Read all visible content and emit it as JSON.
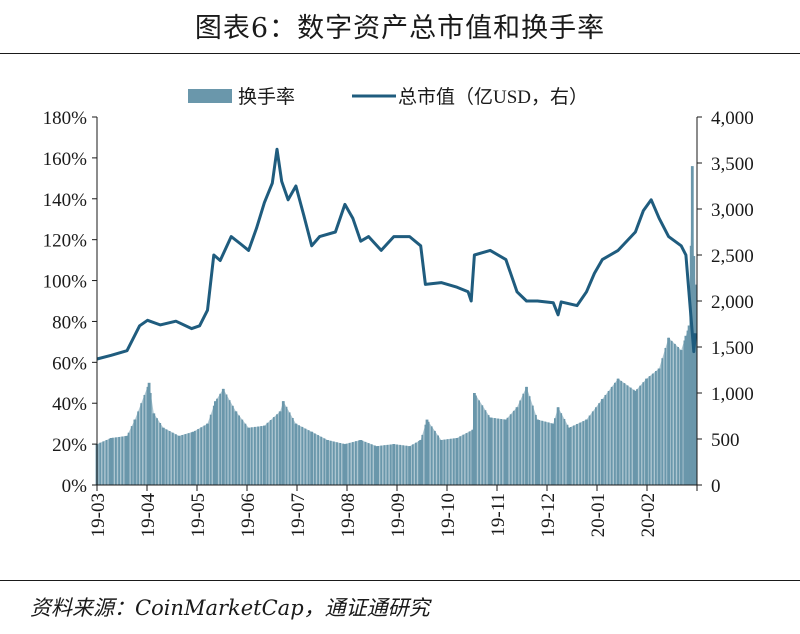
{
  "title": "图表6：数字资产总市值和换手率",
  "source": "资料来源：CoinMarketCap，通证通研究",
  "colors": {
    "bar": "#6a97ab",
    "line": "#1f5c7e",
    "text": "#1a1a1a",
    "axis": "#1a1a1a"
  },
  "chart_data": {
    "type": "bar+line",
    "legend": {
      "position": "top-center",
      "bar_label": "换手率",
      "line_label": "总市值（亿USD，右）"
    },
    "x_ticks": [
      "19-03",
      "19-04",
      "19-05",
      "19-06",
      "19-07",
      "19-08",
      "19-09",
      "19-10",
      "19-11",
      "19-12",
      "20-01",
      "20-02"
    ],
    "x_domain": [
      "2019-03-01",
      "2020-03-15"
    ],
    "y_left": {
      "min": 0,
      "max": 180,
      "ticks": [
        "0%",
        "20%",
        "40%",
        "60%",
        "80%",
        "100%",
        "120%",
        "140%",
        "160%",
        "180%"
      ]
    },
    "y_right": {
      "min": 0,
      "max": 4000,
      "ticks": [
        "0",
        "500",
        "1,000",
        "1,500",
        "2,000",
        "2,500",
        "3,000",
        "3,500",
        "4,000"
      ]
    },
    "grid": false,
    "series": [
      {
        "name": "换手率",
        "kind": "bar",
        "axis": "left",
        "unit": "%",
        "points": [
          [
            "2019-03-01",
            20
          ],
          [
            "2019-03-10",
            23
          ],
          [
            "2019-03-20",
            24
          ],
          [
            "2019-03-25",
            32
          ],
          [
            "2019-04-03",
            50
          ],
          [
            "2019-04-06",
            35
          ],
          [
            "2019-04-12",
            28
          ],
          [
            "2019-04-22",
            24
          ],
          [
            "2019-05-01",
            26
          ],
          [
            "2019-05-10",
            30
          ],
          [
            "2019-05-15",
            41
          ],
          [
            "2019-05-20",
            47
          ],
          [
            "2019-05-28",
            36
          ],
          [
            "2019-06-05",
            28
          ],
          [
            "2019-06-15",
            29
          ],
          [
            "2019-06-25",
            36
          ],
          [
            "2019-06-27",
            41
          ],
          [
            "2019-07-05",
            30
          ],
          [
            "2019-07-15",
            26
          ],
          [
            "2019-07-25",
            22
          ],
          [
            "2019-08-05",
            20
          ],
          [
            "2019-08-15",
            22
          ],
          [
            "2019-08-25",
            19
          ],
          [
            "2019-09-05",
            20
          ],
          [
            "2019-09-15",
            19
          ],
          [
            "2019-09-22",
            22
          ],
          [
            "2019-09-26",
            32
          ],
          [
            "2019-10-05",
            22
          ],
          [
            "2019-10-15",
            23
          ],
          [
            "2019-10-25",
            27
          ],
          [
            "2019-10-26",
            45
          ],
          [
            "2019-11-05",
            33
          ],
          [
            "2019-11-15",
            32
          ],
          [
            "2019-11-22",
            38
          ],
          [
            "2019-11-28",
            48
          ],
          [
            "2019-12-05",
            32
          ],
          [
            "2019-12-15",
            30
          ],
          [
            "2019-12-18",
            38
          ],
          [
            "2019-12-25",
            28
          ],
          [
            "2020-01-05",
            32
          ],
          [
            "2020-01-15",
            42
          ],
          [
            "2020-01-25",
            52
          ],
          [
            "2020-02-05",
            46
          ],
          [
            "2020-02-12",
            52
          ],
          [
            "2020-02-20",
            57
          ],
          [
            "2020-02-26",
            72
          ],
          [
            "2020-03-05",
            66
          ],
          [
            "2020-03-08",
            73
          ],
          [
            "2020-03-10",
            78
          ],
          [
            "2020-03-12",
            156
          ],
          [
            "2020-03-13",
            112
          ],
          [
            "2020-03-14",
            98
          ]
        ]
      },
      {
        "name": "总市值",
        "kind": "line",
        "axis": "right",
        "unit": "亿USD",
        "points": [
          [
            "2019-03-01",
            1370
          ],
          [
            "2019-03-10",
            1410
          ],
          [
            "2019-03-20",
            1460
          ],
          [
            "2019-03-28",
            1730
          ],
          [
            "2019-04-02",
            1790
          ],
          [
            "2019-04-10",
            1740
          ],
          [
            "2019-04-20",
            1780
          ],
          [
            "2019-04-30",
            1700
          ],
          [
            "2019-05-05",
            1730
          ],
          [
            "2019-05-10",
            1900
          ],
          [
            "2019-05-14",
            2500
          ],
          [
            "2019-05-18",
            2440
          ],
          [
            "2019-05-25",
            2700
          ],
          [
            "2019-05-31",
            2620
          ],
          [
            "2019-06-05",
            2550
          ],
          [
            "2019-06-10",
            2790
          ],
          [
            "2019-06-15",
            3070
          ],
          [
            "2019-06-20",
            3280
          ],
          [
            "2019-06-23",
            3650
          ],
          [
            "2019-06-26",
            3300
          ],
          [
            "2019-06-30",
            3100
          ],
          [
            "2019-07-05",
            3250
          ],
          [
            "2019-07-10",
            2930
          ],
          [
            "2019-07-15",
            2600
          ],
          [
            "2019-07-20",
            2700
          ],
          [
            "2019-07-30",
            2750
          ],
          [
            "2019-08-05",
            3050
          ],
          [
            "2019-08-10",
            2900
          ],
          [
            "2019-08-15",
            2650
          ],
          [
            "2019-08-20",
            2700
          ],
          [
            "2019-08-28",
            2550
          ],
          [
            "2019-09-05",
            2700
          ],
          [
            "2019-09-15",
            2700
          ],
          [
            "2019-09-22",
            2600
          ],
          [
            "2019-09-25",
            2180
          ],
          [
            "2019-10-05",
            2200
          ],
          [
            "2019-10-15",
            2150
          ],
          [
            "2019-10-22",
            2100
          ],
          [
            "2019-10-24",
            2000
          ],
          [
            "2019-10-26",
            2500
          ],
          [
            "2019-11-05",
            2550
          ],
          [
            "2019-11-15",
            2450
          ],
          [
            "2019-11-22",
            2100
          ],
          [
            "2019-11-28",
            2000
          ],
          [
            "2019-12-05",
            2000
          ],
          [
            "2019-12-15",
            1980
          ],
          [
            "2019-12-18",
            1850
          ],
          [
            "2019-12-20",
            1990
          ],
          [
            "2019-12-30",
            1950
          ],
          [
            "2020-01-05",
            2100
          ],
          [
            "2020-01-10",
            2300
          ],
          [
            "2020-01-15",
            2450
          ],
          [
            "2020-01-25",
            2550
          ],
          [
            "2020-02-05",
            2750
          ],
          [
            "2020-02-10",
            2980
          ],
          [
            "2020-02-15",
            3100
          ],
          [
            "2020-02-20",
            2900
          ],
          [
            "2020-02-26",
            2700
          ],
          [
            "2020-03-05",
            2600
          ],
          [
            "2020-03-08",
            2500
          ],
          [
            "2020-03-12",
            1650
          ],
          [
            "2020-03-13",
            1450
          ],
          [
            "2020-03-14",
            1650
          ]
        ]
      }
    ]
  }
}
